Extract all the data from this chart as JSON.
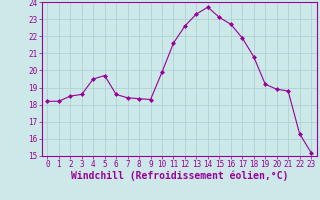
{
  "x": [
    0,
    1,
    2,
    3,
    4,
    5,
    6,
    7,
    8,
    9,
    10,
    11,
    12,
    13,
    14,
    15,
    16,
    17,
    18,
    19,
    20,
    21,
    22,
    23
  ],
  "y": [
    18.2,
    18.2,
    18.5,
    18.6,
    19.5,
    19.7,
    18.6,
    18.4,
    18.35,
    18.3,
    19.9,
    21.6,
    22.6,
    23.3,
    23.7,
    23.1,
    22.7,
    21.9,
    20.8,
    19.2,
    18.9,
    18.8,
    16.3,
    15.2
  ],
  "line_color": "#990099",
  "marker": "D",
  "marker_size": 2.0,
  "bg_color": "#cce8e8",
  "grid_color": "#aacece",
  "xlabel": "Windchill (Refroidissement éolien,°C)",
  "xlabel_color": "#990099",
  "ylim": [
    15,
    24
  ],
  "xlim_min": -0.5,
  "xlim_max": 23.5,
  "yticks": [
    15,
    16,
    17,
    18,
    19,
    20,
    21,
    22,
    23,
    24
  ],
  "xticks": [
    0,
    1,
    2,
    3,
    4,
    5,
    6,
    7,
    8,
    9,
    10,
    11,
    12,
    13,
    14,
    15,
    16,
    17,
    18,
    19,
    20,
    21,
    22,
    23
  ],
  "tick_color": "#990099",
  "tick_fontsize": 5.5,
  "xlabel_fontsize": 7.0,
  "spine_color": "#990099"
}
